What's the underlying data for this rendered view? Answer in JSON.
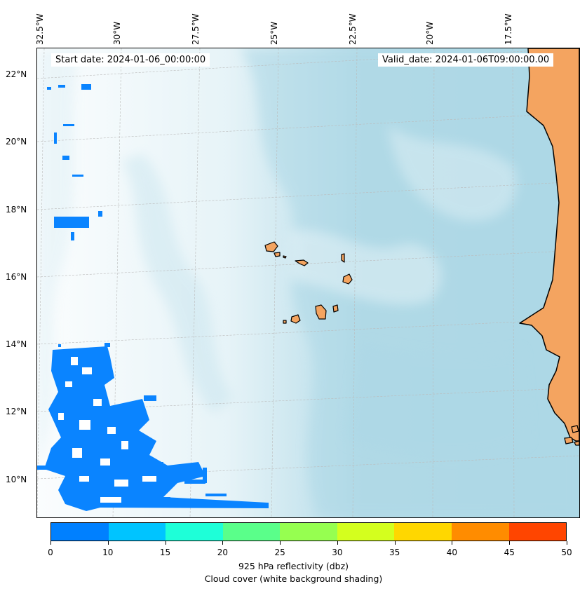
{
  "header": {
    "start_date": "Start date: 2024-01-06_00:00:00",
    "valid_date": "Valid_date: 2024-01-06T09:00:00.00"
  },
  "longitude_labels": [
    "32.5°W",
    "30°W",
    "27.5°W",
    "25°W",
    "22.5°W",
    "20°W",
    "17.5°W"
  ],
  "latitude_labels": [
    "22°N",
    "20°N",
    "18°N",
    "16°N",
    "14°N",
    "12°N",
    "10°N"
  ],
  "colorbar": {
    "ticks": [
      "0",
      "10",
      "15",
      "20",
      "25",
      "30",
      "35",
      "40",
      "45",
      "50"
    ],
    "colors": [
      "#0080ff",
      "#00c4ff",
      "#1effd8",
      "#5aff8a",
      "#96ff50",
      "#d4ff1e",
      "#ffd700",
      "#ff8c00",
      "#ff4500"
    ],
    "label_line1": "925 hPa reflectivity (dbz)",
    "label_line2": "Cloud cover (white background shading)"
  },
  "colors": {
    "land": "#f4a460",
    "coastline": "#000000",
    "cloud_shading": "#add8e6",
    "reflectivity_low": "#0a84ff",
    "gridline": "#bbbbbb"
  }
}
